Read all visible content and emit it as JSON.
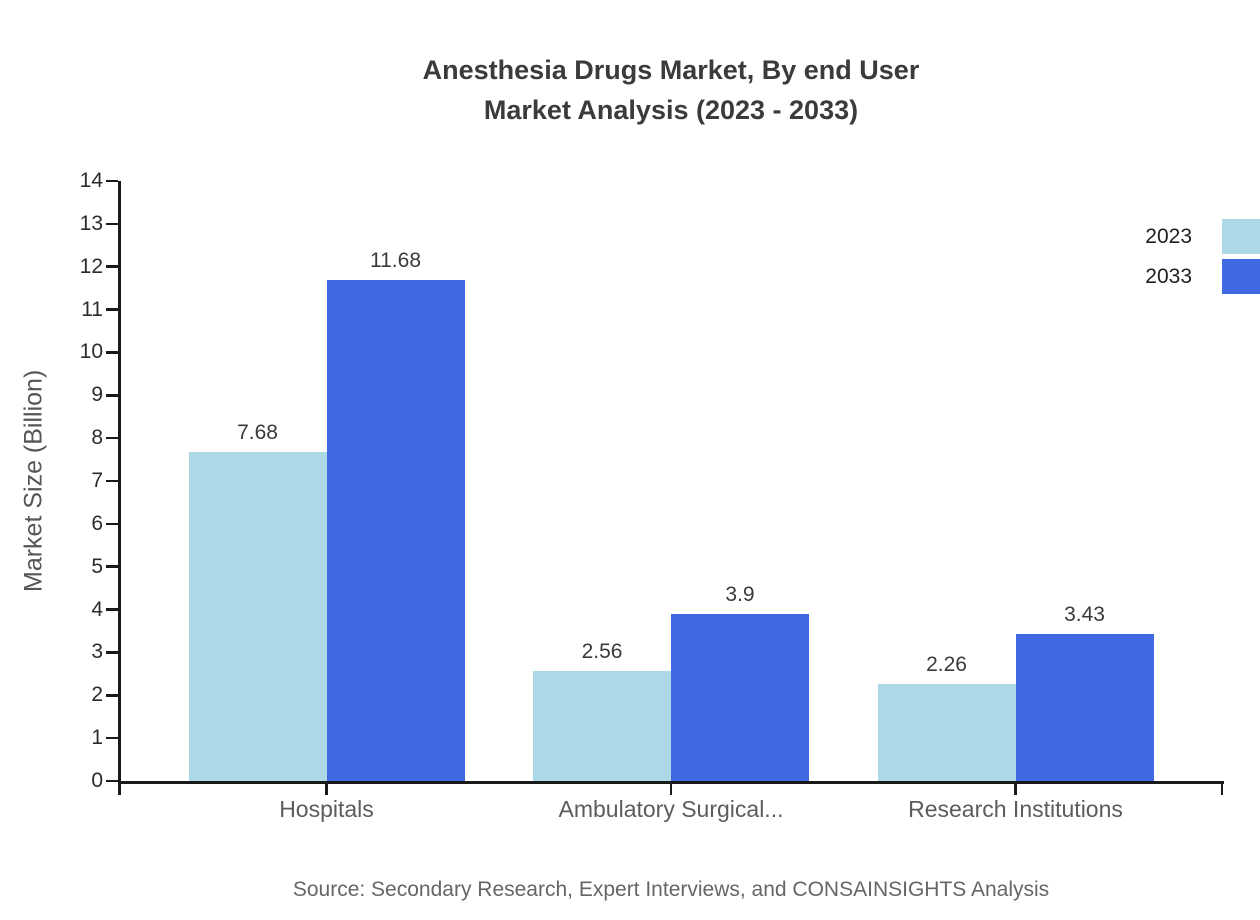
{
  "chart_data": {
    "type": "bar",
    "title": "Anesthesia Drugs Market, By end User",
    "subtitle": "Market Analysis (2023 - 2033)",
    "categories": [
      "Hospitals",
      "Ambulatory Surgical...",
      "Research Institutions"
    ],
    "series": [
      {
        "name": "2023",
        "color": "#ADD8E6",
        "values": [
          7.68,
          2.56,
          2.26
        ]
      },
      {
        "name": "2033",
        "color": "#4169E1",
        "values": [
          11.68,
          3.9,
          3.43
        ]
      }
    ],
    "xlabel": "",
    "ylabel": "Market Size (Billion)",
    "ylim": [
      0,
      14
    ],
    "ytick_step": 1,
    "grid": false,
    "legend_position": "top-right",
    "axis_color": "#1a1a1a",
    "source": "Source: Secondary Research, Expert Interviews, and CONSAINSIGHTS Analysis"
  }
}
